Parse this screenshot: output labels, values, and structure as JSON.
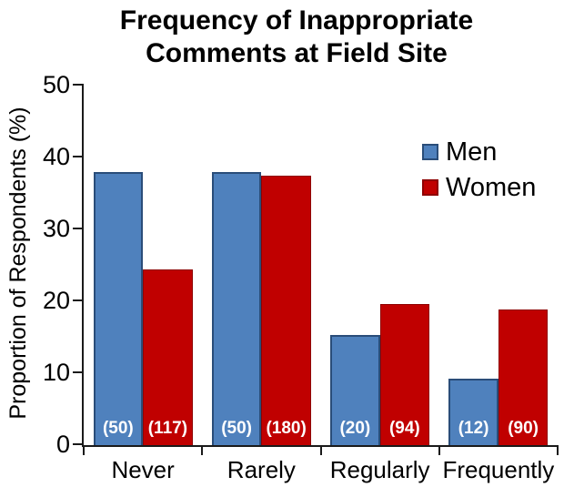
{
  "title": {
    "line1": "Frequency of Inappropriate",
    "line2": "Comments at Field Site"
  },
  "chart_data": {
    "type": "bar",
    "title": "Frequency of Inappropriate Comments at Field Site",
    "categories": [
      "Never",
      "Rarely",
      "Regularly",
      "Frequently"
    ],
    "series": [
      {
        "name": "Men",
        "color": "#4F81BD",
        "border_color": "#2A4D79",
        "values": [
          37.9,
          37.9,
          15.2,
          9.1
        ],
        "count_labels": [
          "(50)",
          "(50)",
          "(20)",
          "(12)"
        ]
      },
      {
        "name": "Women",
        "color": "#C00000",
        "border_color": "#8E0000",
        "values": [
          24.3,
          37.4,
          19.5,
          18.7
        ],
        "count_labels": [
          "(117)",
          "(180)",
          "(94)",
          "(90)"
        ]
      }
    ],
    "xlabel": "",
    "ylabel": "Proportion of Respondents (%)",
    "ylim": [
      0,
      50
    ],
    "yticks": [
      0,
      10,
      20,
      30,
      40,
      50
    ],
    "grid": false,
    "legend_position": "upper-right-inside",
    "axis_color": "#1a1a1a",
    "bar_label_color": "#ffffff"
  }
}
